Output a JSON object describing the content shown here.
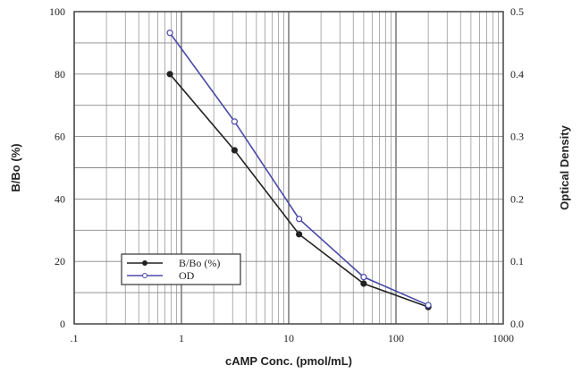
{
  "chart_data": {
    "type": "line",
    "xlabel": "cAMP Conc. (pmol/mL)",
    "ylabel": "B/Bo (%)",
    "y2label": "Optical Density",
    "xscale": "log",
    "xlim": [
      0.1,
      1000
    ],
    "ylim": [
      0,
      100
    ],
    "y2lim": [
      0,
      0.5
    ],
    "x_ticks": [
      ".1",
      "1",
      "10",
      "100",
      "1000"
    ],
    "y_ticks": [
      "0",
      "20",
      "40",
      "60",
      "80",
      "100"
    ],
    "y2_ticks": [
      "0.0",
      "0.1",
      "0.2",
      "0.3",
      "0.4",
      "0.5"
    ],
    "grid": true,
    "legend_position": "bottom-left",
    "x": [
      0.78,
      3.125,
      12.5,
      50,
      200
    ],
    "series": [
      {
        "name": "B/Bo (%)",
        "axis": "left",
        "color": "#222222",
        "marker": "filled-circle",
        "values": [
          80,
          55.6,
          28.7,
          12.9,
          5.4
        ]
      },
      {
        "name": "OD",
        "axis": "right",
        "color": "#4a4aa8",
        "marker": "open-circle",
        "values": [
          0.466,
          0.324,
          0.168,
          0.075,
          0.03
        ]
      }
    ]
  }
}
